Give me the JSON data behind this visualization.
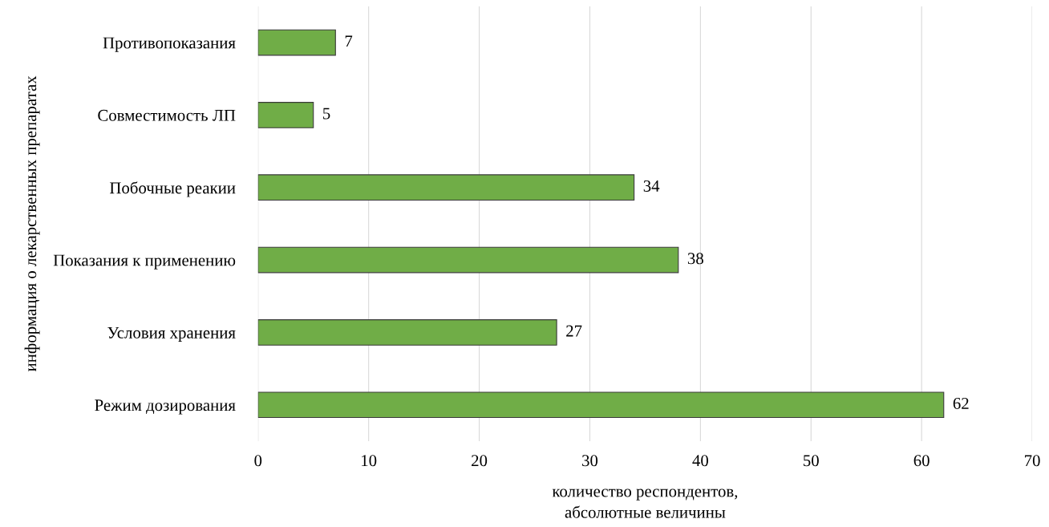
{
  "chart_data": {
    "type": "bar",
    "orientation": "horizontal",
    "categories": [
      "Противопоказания",
      "Совместимость ЛП",
      "Побочные реакии",
      "Показания к применению",
      "Условия хранения",
      "Режим дозирования"
    ],
    "values": [
      7,
      5,
      34,
      38,
      27,
      62
    ],
    "color": "#70ad47",
    "xlim": [
      0,
      70
    ],
    "xticks": [
      0,
      10,
      20,
      30,
      40,
      50,
      60,
      70
    ],
    "xlabel": "количество респондентов,\nабсолютные величины",
    "ylabel": "информация о лекарственных препаратах",
    "grid": "x",
    "data_labels": true,
    "legend": false
  }
}
